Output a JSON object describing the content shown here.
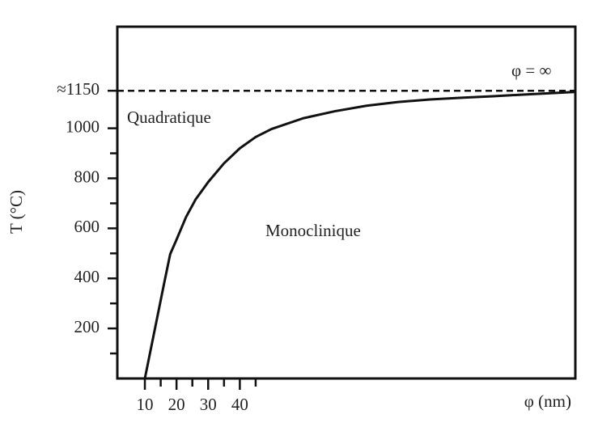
{
  "chart_data": {
    "type": "line",
    "ylabel": "T (°C)",
    "xlabel": "φ (nm)",
    "annotations": [
      "Quadratique",
      "Monoclinique",
      "φ = ∞"
    ],
    "xlim": [
      1.3,
      146
    ],
    "xticks": [
      10,
      20,
      30,
      40
    ],
    "xminorticks": [
      15,
      25,
      35,
      45
    ],
    "ylim": [
      0,
      1406
    ],
    "yticks": [
      200,
      400,
      600,
      800,
      1000,
      {
        "value": 1150,
        "label": "≈1150"
      }
    ],
    "yminorticks": [
      100,
      300,
      500,
      700,
      900
    ],
    "hline": 1150,
    "series": [
      {
        "color": "#111111",
        "x": [
          10,
          12,
          14,
          16,
          18,
          20,
          23,
          26,
          30,
          35,
          40,
          45,
          50,
          60,
          70,
          80,
          90,
          100,
          110,
          120,
          130,
          145.6
        ],
        "values": [
          0,
          125,
          250,
          375,
          497,
          555,
          645,
          715,
          785,
          860,
          920,
          965,
          997,
          1040,
          1068,
          1090,
          1105,
          1115,
          1122,
          1128,
          1135,
          1145
        ]
      }
    ]
  }
}
